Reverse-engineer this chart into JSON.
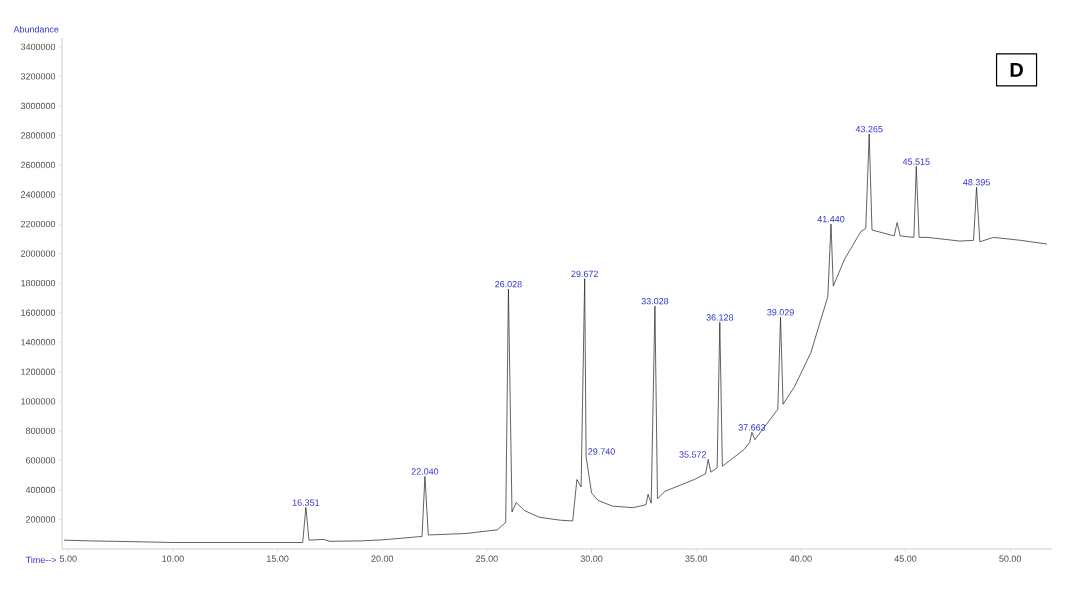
{
  "chart_data": {
    "type": "line",
    "xlabel": "Time-->",
    "ylabel": "Abundance",
    "color": "#202020",
    "xlim": [
      4.7,
      52.0
    ],
    "ylim": [
      0,
      3460000
    ],
    "xticks": [
      {
        "value": 5,
        "label": "5.00"
      },
      {
        "value": 10,
        "label": "10.00"
      },
      {
        "value": 15,
        "label": "15.00"
      },
      {
        "value": 20,
        "label": "20.00"
      },
      {
        "value": 25,
        "label": "25.00"
      },
      {
        "value": 30,
        "label": "30.00"
      },
      {
        "value": 35,
        "label": "35.00"
      },
      {
        "value": 40,
        "label": "40.00"
      },
      {
        "value": 45,
        "label": "45.00"
      },
      {
        "value": 50,
        "label": "50.00"
      }
    ],
    "yticks": [
      200000,
      400000,
      600000,
      800000,
      1000000,
      1200000,
      1400000,
      1600000,
      1800000,
      2000000,
      2200000,
      2400000,
      2600000,
      2800000,
      3000000,
      3200000,
      3400000
    ],
    "x": [
      4.8,
      6,
      8,
      10,
      12,
      14,
      16.2,
      16.351,
      16.5,
      17.2,
      17.5,
      19,
      20,
      21.9,
      22.04,
      22.2,
      24,
      25.5,
      25.9,
      26.028,
      26.2,
      26.4,
      26.8,
      27.5,
      28.5,
      29.1,
      29.3,
      29.5,
      29.672,
      29.74,
      30.0,
      30.3,
      31,
      32,
      32.6,
      32.7,
      32.85,
      33.028,
      33.15,
      33.5,
      34.9,
      35.45,
      35.572,
      35.7,
      36.0,
      36.128,
      36.25,
      37.3,
      37.55,
      37.663,
      37.8,
      38.9,
      39.029,
      39.15,
      39.7,
      40.48,
      41.29,
      41.44,
      41.55,
      42.08,
      42.87,
      43.1,
      43.265,
      43.4,
      44.46,
      44.6,
      44.75,
      45.4,
      45.515,
      45.65,
      46.05,
      47.6,
      48.25,
      48.395,
      48.55,
      49.2,
      50.5,
      51.76
    ],
    "values": [
      60000,
      55000,
      50000,
      44000,
      44000,
      44000,
      44000,
      281000,
      60000,
      65000,
      52000,
      55000,
      62000,
      85000,
      492000,
      95000,
      105000,
      130000,
      180000,
      1760000,
      250000,
      315000,
      260000,
      215000,
      195000,
      190000,
      470000,
      420000,
      1830000,
      627000,
      380000,
      330000,
      290000,
      280000,
      300000,
      370000,
      310000,
      1645000,
      340000,
      390000,
      470000,
      510000,
      607000,
      520000,
      550000,
      1535000,
      560000,
      675000,
      720000,
      790000,
      740000,
      946000,
      1570000,
      980000,
      1100000,
      1330000,
      1710000,
      2200000,
      1780000,
      1960000,
      2150000,
      2170000,
      2810000,
      2160000,
      2120000,
      2210000,
      2120000,
      2110000,
      2590000,
      2110000,
      2110000,
      2085000,
      2090000,
      2450000,
      2080000,
      2110000,
      2090000,
      2065000
    ],
    "annotations": [
      "D",
      {
        "text": "16.351",
        "x": 16.351,
        "y": 281000
      },
      {
        "text": "22.040",
        "x": 22.04,
        "y": 492000
      },
      {
        "text": "26.028",
        "x": 26.028,
        "y": 1760000
      },
      {
        "text": "29.672",
        "x": 29.672,
        "y": 1830000
      },
      {
        "text": "29.740",
        "x": 29.74,
        "y": 627000
      },
      {
        "text": "33.028",
        "x": 33.028,
        "y": 1645000
      },
      {
        "text": "35.572",
        "x": 35.572,
        "y": 607000
      },
      {
        "text": "36.128",
        "x": 36.128,
        "y": 1535000
      },
      {
        "text": "37.663",
        "x": 37.663,
        "y": 790000
      },
      {
        "text": "39.029",
        "x": 39.029,
        "y": 1570000
      },
      {
        "text": "41.440",
        "x": 41.44,
        "y": 2200000
      },
      {
        "text": "43.265",
        "x": 43.265,
        "y": 2810000
      },
      {
        "text": "45.515",
        "x": 45.515,
        "y": 2590000
      },
      {
        "text": "48.395",
        "x": 48.395,
        "y": 2450000
      }
    ]
  }
}
